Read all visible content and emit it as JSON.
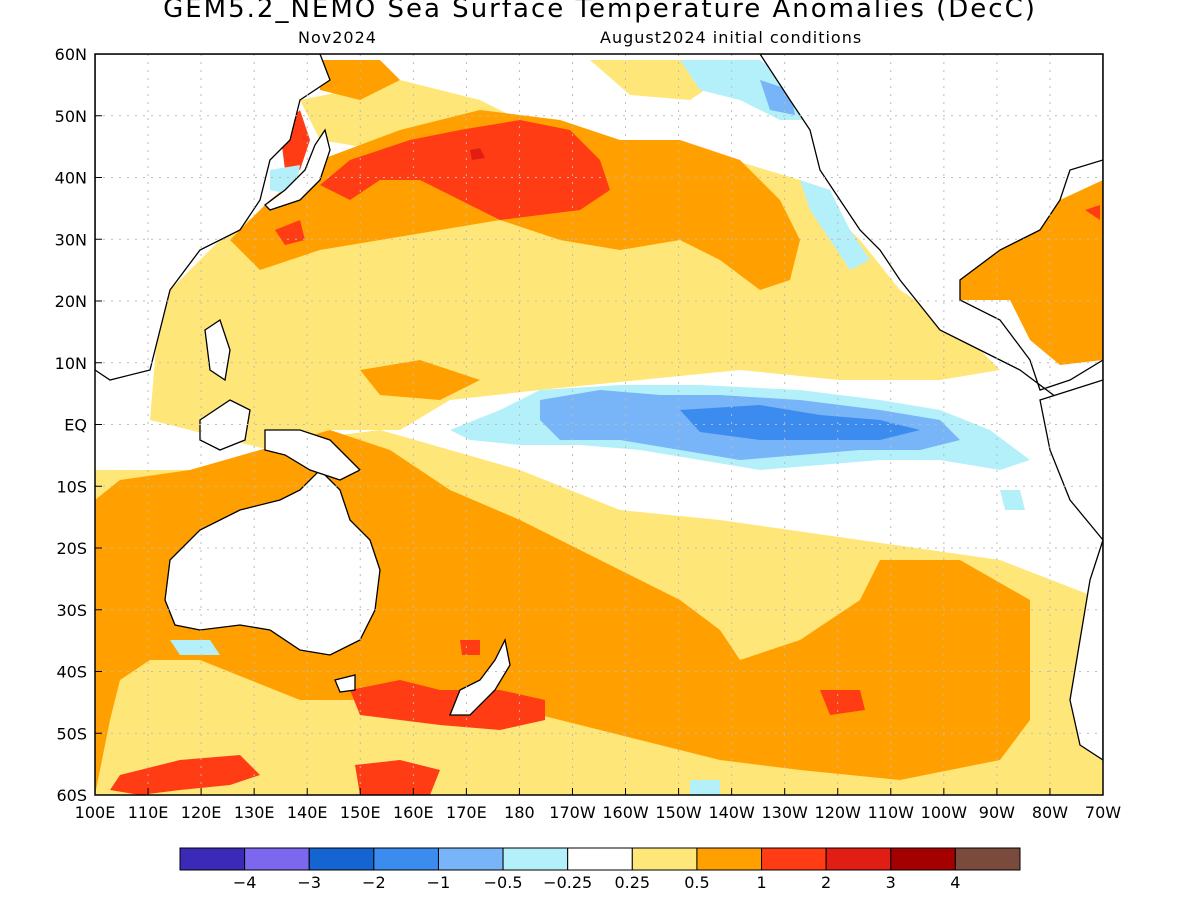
{
  "header": {
    "title": "GEM5.2_NEMO Sea Surface Temperature Anomalies (DecC)",
    "valid_month": "Nov2024",
    "init_conditions": "August2024 initial conditions"
  },
  "map": {
    "lon_ticks": [
      "100E",
      "110E",
      "120E",
      "130E",
      "140E",
      "150E",
      "160E",
      "170E",
      "180",
      "170W",
      "160W",
      "150W",
      "140W",
      "130W",
      "120W",
      "110W",
      "100W",
      "90W",
      "80W",
      "70W"
    ],
    "lat_ticks": [
      "60N",
      "50N",
      "40N",
      "30N",
      "20N",
      "10N",
      "EQ",
      "10S",
      "20S",
      "30S",
      "40S",
      "50S",
      "60S"
    ],
    "lon_range": [
      100,
      290
    ],
    "lat_range": [
      -60,
      60
    ]
  },
  "colorbar": {
    "colors": [
      "#3b2ab8",
      "#7b68ee",
      "#1464d2",
      "#3c8cf0",
      "#78b4f8",
      "#b4f0fa",
      "#ffffff",
      "#ffe678",
      "#ffa000",
      "#ff3c14",
      "#e11e14",
      "#a50000",
      "#7a4b3c"
    ],
    "labels": [
      "-4",
      "-3",
      "-2",
      "-1",
      "-0.5",
      "-0.25",
      "0.25",
      "0.5",
      "1",
      "2",
      "3",
      "4"
    ]
  },
  "palette": {
    "pos_light": "#ffe678",
    "pos_mid": "#ffa000",
    "pos_strong": "#ff3c14",
    "pos_vstrong": "#e11e14",
    "neg_light": "#b4f0fa",
    "neg_mid": "#78b4f8",
    "neg_strong": "#3c8cf0"
  }
}
